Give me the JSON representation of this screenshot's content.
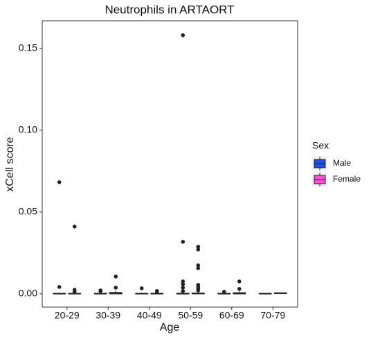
{
  "chart_data": {
    "type": "box",
    "title": "Neutrophils in ARTAORT",
    "x_label": "Age",
    "y_label": "xCell score",
    "categories": [
      "20-29",
      "30-39",
      "40-49",
      "50-59",
      "60-69",
      "70-79"
    ],
    "ylim": [
      -0.0081,
      0.1668
    ],
    "yticks": [
      {
        "value": 0,
        "label": "0.00"
      },
      {
        "value": 0.05,
        "label": "0.05"
      },
      {
        "value": 0.1,
        "label": "0.10"
      },
      {
        "value": 0.15,
        "label": "0.15"
      }
    ],
    "legend_title": "Sex",
    "legend_position": "right",
    "grid": false,
    "series": [
      {
        "name": "Male",
        "color": "#1f4fe6",
        "low": [
          0,
          0,
          0,
          0,
          0,
          0
        ],
        "q1": [
          0,
          0,
          0,
          0,
          0,
          0
        ],
        "median": [
          0.0001,
          0.0001,
          0.0001,
          0.0001,
          0.0001,
          0.0001
        ],
        "q3": [
          0.0003,
          0.0003,
          0.0003,
          0.0004,
          0.0003,
          0.0002
        ],
        "high": [
          0.0007,
          0.0007,
          0.0007,
          0.0009,
          0.0007,
          0.0005
        ],
        "outliers": [
          [
            0.0682,
            0.0042
          ],
          [
            0.0021,
            0.0017
          ],
          [
            0.0034
          ],
          [
            0.158,
            0.0318,
            0.0076,
            0.0059,
            0.0038,
            0.0017
          ],
          [
            0.0013
          ],
          []
        ]
      },
      {
        "name": "Female",
        "color": "#ff4fd8",
        "low": [
          0,
          0,
          0,
          0,
          0,
          0
        ],
        "q1": [
          0,
          0,
          0,
          0,
          0,
          0.0002
        ],
        "median": [
          0.0001,
          0.0002,
          0.0001,
          0.0002,
          0.0002,
          0.0004
        ],
        "q3": [
          0.0003,
          0.0009,
          0.0003,
          0.0005,
          0.0007,
          0.0006
        ],
        "high": [
          0.0007,
          0.002,
          0.0007,
          0.0011,
          0.0016,
          0.0008
        ],
        "outliers": [
          [
            0.0411,
            0.0025,
            0.0013
          ],
          [
            0.0106,
            0.0038
          ],
          [
            0.0017,
            0.0013
          ],
          [
            0.0288,
            0.0271,
            0.0174,
            0.0157,
            0.0055,
            0.0042,
            0.0034,
            0.0021
          ],
          [
            0.0076,
            0.003
          ],
          []
        ]
      }
    ]
  }
}
